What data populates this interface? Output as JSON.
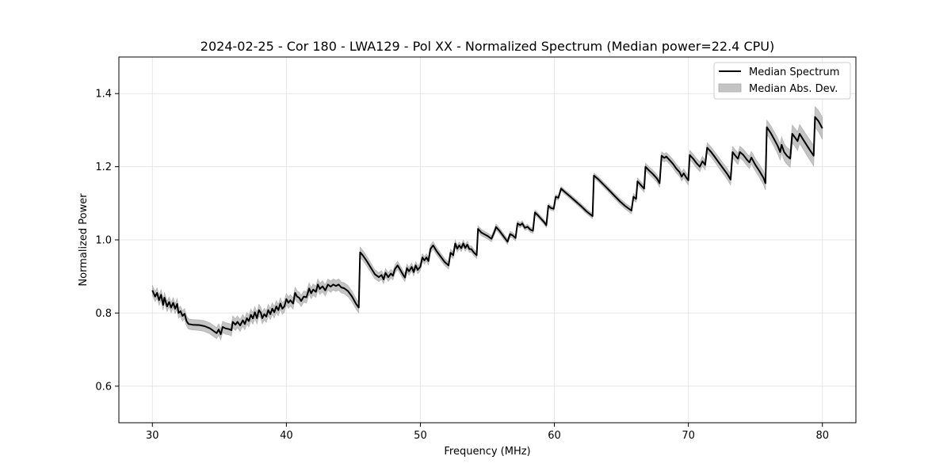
{
  "chart_data": {
    "type": "line",
    "title": "2024-02-25 - Cor 180 - LWA129 - Pol XX - Normalized Spectrum (Median power=22.4 CPU)",
    "xlabel": "Frequency (MHz)",
    "ylabel": "Normalized Power",
    "xlim": [
      27.5,
      82.5
    ],
    "ylim": [
      0.5,
      1.5
    ],
    "xticks": [
      30,
      40,
      50,
      60,
      70,
      80
    ],
    "xtick_labels": [
      "30",
      "40",
      "50",
      "60",
      "70",
      "80"
    ],
    "yticks": [
      0.6,
      0.8,
      1.0,
      1.2,
      1.4
    ],
    "ytick_labels": [
      "0.6",
      "0.8",
      "1.0",
      "1.2",
      "1.4"
    ],
    "grid": true,
    "legend": {
      "position": "top-right",
      "entries": [
        {
          "label": "Median Spectrum",
          "kind": "line",
          "color": "#000000"
        },
        {
          "label": "Median Abs. Dev.",
          "kind": "band",
          "color": "#c4c4c4"
        }
      ]
    },
    "series": [
      {
        "name": "Median Spectrum",
        "color": "#000000",
        "points": [
          [
            30.0,
            0.862
          ],
          [
            30.2,
            0.845
          ],
          [
            30.35,
            0.855
          ],
          [
            30.5,
            0.835
          ],
          [
            30.65,
            0.85
          ],
          [
            30.8,
            0.822
          ],
          [
            30.9,
            0.842
          ],
          [
            31.1,
            0.818
          ],
          [
            31.25,
            0.83
          ],
          [
            31.4,
            0.815
          ],
          [
            31.55,
            0.828
          ],
          [
            31.7,
            0.812
          ],
          [
            31.85,
            0.825
          ],
          [
            31.95,
            0.8
          ],
          [
            32.1,
            0.805
          ],
          [
            32.25,
            0.792
          ],
          [
            32.4,
            0.798
          ],
          [
            32.55,
            0.778
          ],
          [
            32.7,
            0.77
          ],
          [
            33.0,
            0.768
          ],
          [
            33.5,
            0.767
          ],
          [
            33.9,
            0.764
          ],
          [
            34.3,
            0.758
          ],
          [
            34.6,
            0.75
          ],
          [
            34.8,
            0.745
          ],
          [
            34.95,
            0.755
          ],
          [
            35.1,
            0.742
          ],
          [
            35.25,
            0.762
          ],
          [
            35.45,
            0.758
          ],
          [
            35.7,
            0.756
          ],
          [
            35.9,
            0.753
          ],
          [
            36.0,
            0.776
          ],
          [
            36.2,
            0.768
          ],
          [
            36.35,
            0.776
          ],
          [
            36.55,
            0.766
          ],
          [
            36.75,
            0.78
          ],
          [
            36.9,
            0.77
          ],
          [
            37.05,
            0.786
          ],
          [
            37.2,
            0.778
          ],
          [
            37.35,
            0.795
          ],
          [
            37.5,
            0.785
          ],
          [
            37.65,
            0.802
          ],
          [
            37.8,
            0.786
          ],
          [
            37.95,
            0.808
          ],
          [
            38.1,
            0.8
          ],
          [
            38.2,
            0.786
          ],
          [
            38.35,
            0.797
          ],
          [
            38.5,
            0.79
          ],
          [
            38.65,
            0.808
          ],
          [
            38.8,
            0.797
          ],
          [
            38.95,
            0.812
          ],
          [
            39.1,
            0.802
          ],
          [
            39.25,
            0.818
          ],
          [
            39.4,
            0.808
          ],
          [
            39.55,
            0.826
          ],
          [
            39.7,
            0.812
          ],
          [
            39.85,
            0.818
          ],
          [
            40.0,
            0.838
          ],
          [
            40.15,
            0.828
          ],
          [
            40.3,
            0.835
          ],
          [
            40.5,
            0.826
          ],
          [
            40.65,
            0.855
          ],
          [
            40.8,
            0.845
          ],
          [
            40.95,
            0.842
          ],
          [
            41.1,
            0.833
          ],
          [
            41.3,
            0.845
          ],
          [
            41.5,
            0.843
          ],
          [
            41.7,
            0.867
          ],
          [
            41.85,
            0.854
          ],
          [
            42.0,
            0.864
          ],
          [
            42.2,
            0.858
          ],
          [
            42.35,
            0.878
          ],
          [
            42.5,
            0.866
          ],
          [
            42.7,
            0.873
          ],
          [
            42.9,
            0.862
          ],
          [
            43.1,
            0.878
          ],
          [
            43.3,
            0.872
          ],
          [
            43.5,
            0.878
          ],
          [
            43.7,
            0.874
          ],
          [
            43.9,
            0.878
          ],
          [
            44.1,
            0.87
          ],
          [
            44.3,
            0.868
          ],
          [
            44.6,
            0.86
          ],
          [
            44.9,
            0.845
          ],
          [
            45.2,
            0.825
          ],
          [
            45.4,
            0.815
          ],
          [
            45.5,
            0.966
          ],
          [
            45.7,
            0.958
          ],
          [
            46.0,
            0.942
          ],
          [
            46.3,
            0.924
          ],
          [
            46.6,
            0.906
          ],
          [
            46.9,
            0.898
          ],
          [
            47.1,
            0.904
          ],
          [
            47.25,
            0.892
          ],
          [
            47.4,
            0.91
          ],
          [
            47.6,
            0.898
          ],
          [
            47.8,
            0.908
          ],
          [
            47.95,
            0.902
          ],
          [
            48.1,
            0.92
          ],
          [
            48.3,
            0.93
          ],
          [
            48.5,
            0.918
          ],
          [
            48.7,
            0.905
          ],
          [
            48.85,
            0.897
          ],
          [
            49.0,
            0.923
          ],
          [
            49.15,
            0.914
          ],
          [
            49.35,
            0.926
          ],
          [
            49.5,
            0.912
          ],
          [
            49.65,
            0.93
          ],
          [
            49.8,
            0.918
          ],
          [
            50.0,
            0.927
          ],
          [
            50.15,
            0.952
          ],
          [
            50.3,
            0.944
          ],
          [
            50.45,
            0.952
          ],
          [
            50.6,
            0.942
          ],
          [
            50.75,
            0.975
          ],
          [
            50.95,
            0.985
          ],
          [
            51.2,
            0.97
          ],
          [
            51.5,
            0.955
          ],
          [
            51.8,
            0.94
          ],
          [
            52.1,
            0.93
          ],
          [
            52.25,
            0.965
          ],
          [
            52.45,
            0.958
          ],
          [
            52.6,
            0.99
          ],
          [
            52.75,
            0.976
          ],
          [
            52.9,
            0.985
          ],
          [
            53.05,
            0.977
          ],
          [
            53.2,
            0.99
          ],
          [
            53.35,
            0.978
          ],
          [
            53.5,
            0.987
          ],
          [
            53.65,
            0.975
          ],
          [
            53.8,
            0.975
          ],
          [
            54.0,
            0.965
          ],
          [
            54.2,
            0.958
          ],
          [
            54.3,
            1.03
          ],
          [
            54.55,
            1.02
          ],
          [
            54.8,
            1.015
          ],
          [
            55.05,
            1.01
          ],
          [
            55.3,
            1.003
          ],
          [
            55.5,
            1.02
          ],
          [
            55.65,
            1.035
          ],
          [
            55.9,
            1.025
          ],
          [
            56.2,
            1.01
          ],
          [
            56.5,
            0.995
          ],
          [
            56.7,
            1.016
          ],
          [
            56.9,
            1.012
          ],
          [
            57.1,
            1.005
          ],
          [
            57.25,
            1.045
          ],
          [
            57.45,
            1.04
          ],
          [
            57.6,
            1.045
          ],
          [
            57.8,
            1.033
          ],
          [
            58.0,
            1.036
          ],
          [
            58.2,
            1.028
          ],
          [
            58.4,
            1.025
          ],
          [
            58.55,
            1.075
          ],
          [
            58.75,
            1.068
          ],
          [
            58.95,
            1.06
          ],
          [
            59.2,
            1.05
          ],
          [
            59.4,
            1.04
          ],
          [
            59.55,
            1.093
          ],
          [
            59.75,
            1.087
          ],
          [
            59.95,
            1.085
          ],
          [
            60.1,
            1.118
          ],
          [
            60.3,
            1.115
          ],
          [
            60.5,
            1.14
          ],
          [
            60.8,
            1.13
          ],
          [
            61.2,
            1.118
          ],
          [
            61.6,
            1.105
          ],
          [
            62.0,
            1.092
          ],
          [
            62.4,
            1.078
          ],
          [
            62.85,
            1.065
          ],
          [
            62.95,
            1.176
          ],
          [
            63.3,
            1.165
          ],
          [
            63.7,
            1.15
          ],
          [
            64.1,
            1.135
          ],
          [
            64.5,
            1.12
          ],
          [
            64.9,
            1.105
          ],
          [
            65.3,
            1.092
          ],
          [
            65.75,
            1.08
          ],
          [
            65.9,
            1.118
          ],
          [
            66.1,
            1.112
          ],
          [
            66.2,
            1.16
          ],
          [
            66.45,
            1.15
          ],
          [
            66.7,
            1.14
          ],
          [
            66.8,
            1.2
          ],
          [
            67.05,
            1.19
          ],
          [
            67.35,
            1.18
          ],
          [
            67.65,
            1.168
          ],
          [
            67.85,
            1.155
          ],
          [
            68.0,
            1.23
          ],
          [
            68.2,
            1.224
          ],
          [
            68.35,
            1.228
          ],
          [
            68.6,
            1.218
          ],
          [
            68.85,
            1.208
          ],
          [
            69.1,
            1.195
          ],
          [
            69.35,
            1.185
          ],
          [
            69.5,
            1.173
          ],
          [
            69.65,
            1.182
          ],
          [
            69.85,
            1.17
          ],
          [
            70.0,
            1.163
          ],
          [
            70.1,
            1.232
          ],
          [
            70.35,
            1.222
          ],
          [
            70.6,
            1.21
          ],
          [
            70.85,
            1.2
          ],
          [
            71.05,
            1.215
          ],
          [
            71.25,
            1.205
          ],
          [
            71.4,
            1.252
          ],
          [
            71.7,
            1.24
          ],
          [
            72.0,
            1.225
          ],
          [
            72.3,
            1.21
          ],
          [
            72.6,
            1.195
          ],
          [
            72.9,
            1.18
          ],
          [
            73.15,
            1.165
          ],
          [
            73.3,
            1.24
          ],
          [
            73.55,
            1.228
          ],
          [
            73.7,
            1.222
          ],
          [
            73.85,
            1.24
          ],
          [
            74.1,
            1.232
          ],
          [
            74.35,
            1.22
          ],
          [
            74.55,
            1.212
          ],
          [
            74.7,
            1.225
          ],
          [
            75.0,
            1.205
          ],
          [
            75.3,
            1.188
          ],
          [
            75.6,
            1.17
          ],
          [
            75.75,
            1.155
          ],
          [
            75.85,
            1.308
          ],
          [
            76.15,
            1.292
          ],
          [
            76.4,
            1.275
          ],
          [
            76.65,
            1.258
          ],
          [
            76.85,
            1.24
          ],
          [
            76.95,
            1.26
          ],
          [
            77.15,
            1.24
          ],
          [
            77.35,
            1.23
          ],
          [
            77.6,
            1.222
          ],
          [
            77.75,
            1.29
          ],
          [
            77.95,
            1.28
          ],
          [
            78.15,
            1.27
          ],
          [
            78.3,
            1.29
          ],
          [
            78.6,
            1.272
          ],
          [
            78.9,
            1.255
          ],
          [
            79.2,
            1.238
          ],
          [
            79.35,
            1.23
          ],
          [
            79.45,
            1.336
          ],
          [
            79.7,
            1.325
          ],
          [
            80.0,
            1.305
          ]
        ]
      }
    ],
    "band": {
      "name": "Median Abs. Dev.",
      "color": "#c4c4c4",
      "halfwidth_points": [
        [
          30.0,
          0.014
        ],
        [
          33.0,
          0.014
        ],
        [
          36.0,
          0.016
        ],
        [
          45.0,
          0.015
        ],
        [
          47.0,
          0.012
        ],
        [
          60.0,
          0.006
        ],
        [
          64.0,
          0.007
        ],
        [
          68.0,
          0.011
        ],
        [
          72.0,
          0.014
        ],
        [
          75.0,
          0.017
        ],
        [
          80.0,
          0.03
        ]
      ]
    }
  }
}
